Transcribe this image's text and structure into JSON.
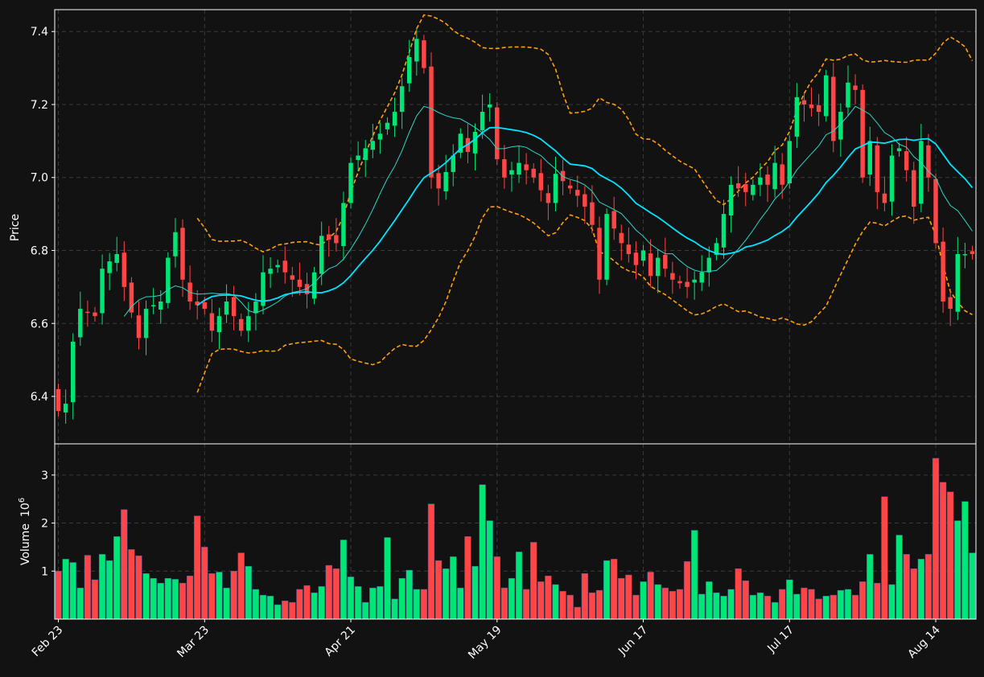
{
  "colors": {
    "background": "#121212",
    "up": "#00e676",
    "down": "#ff4545",
    "ma_fast": "#2fd6c6",
    "ma_slow": "#00e5ff",
    "bands": "#ff9f0a",
    "grid": "#3a3a3a",
    "frame": "#ffffff"
  },
  "chart_data": {
    "type": "candlestick",
    "price_panel": {
      "ylabel": "Price",
      "ylim": [
        6.27,
        7.46
      ],
      "yticks": [
        6.4,
        6.6,
        6.8,
        7.0,
        7.2,
        7.4
      ]
    },
    "volume_panel": {
      "ylabel": "Volume",
      "ylabel_exponent": "10",
      "ylabel_power": "6",
      "ylim": [
        0,
        3.65
      ],
      "yticks": [
        1,
        2,
        3
      ]
    },
    "xlim": [
      -0.5,
      125.5
    ],
    "xticks": [
      {
        "index": 0,
        "label": "Feb 23"
      },
      {
        "index": 20,
        "label": "Mar 23"
      },
      {
        "index": 40,
        "label": "Apr 21"
      },
      {
        "index": 60,
        "label": "May 19"
      },
      {
        "index": 80,
        "label": "Jun 17"
      },
      {
        "index": 100,
        "label": "Jul 17"
      },
      {
        "index": 120,
        "label": "Aug 14"
      }
    ],
    "grid": true,
    "legend": "none",
    "close_anchors": [
      [
        0,
        6.36
      ],
      [
        1,
        6.38
      ],
      [
        2,
        6.55
      ],
      [
        3,
        6.64
      ],
      [
        5,
        6.62
      ],
      [
        6,
        6.75
      ],
      [
        8,
        6.79
      ],
      [
        9,
        6.7
      ],
      [
        11,
        6.56
      ],
      [
        12,
        6.64
      ],
      [
        14,
        6.66
      ],
      [
        15,
        6.78
      ],
      [
        16,
        6.85
      ],
      [
        17,
        6.72
      ],
      [
        18,
        6.66
      ],
      [
        20,
        6.64
      ],
      [
        21,
        6.58
      ],
      [
        23,
        6.66
      ],
      [
        25,
        6.58
      ],
      [
        27,
        6.66
      ],
      [
        28,
        6.74
      ],
      [
        30,
        6.76
      ],
      [
        32,
        6.72
      ],
      [
        34,
        6.68
      ],
      [
        35,
        6.74
      ],
      [
        36,
        6.84
      ],
      [
        38,
        6.82
      ],
      [
        39,
        6.93
      ],
      [
        40,
        7.04
      ],
      [
        42,
        7.08
      ],
      [
        44,
        7.12
      ],
      [
        46,
        7.18
      ],
      [
        47,
        7.25
      ],
      [
        48,
        7.33
      ],
      [
        49,
        7.38
      ],
      [
        50,
        7.3
      ],
      [
        51,
        7.0
      ],
      [
        52,
        6.97
      ],
      [
        54,
        7.06
      ],
      [
        55,
        7.12
      ],
      [
        56,
        7.07
      ],
      [
        58,
        7.18
      ],
      [
        59,
        7.2
      ],
      [
        60,
        7.05
      ],
      [
        61,
        7.0
      ],
      [
        63,
        7.04
      ],
      [
        65,
        7.0
      ],
      [
        67,
        6.93
      ],
      [
        68,
        7.01
      ],
      [
        70,
        6.97
      ],
      [
        71,
        6.95
      ],
      [
        72,
        6.92
      ],
      [
        73,
        6.87
      ],
      [
        74,
        6.72
      ],
      [
        75,
        6.9
      ],
      [
        77,
        6.82
      ],
      [
        79,
        6.76
      ],
      [
        80,
        6.8
      ],
      [
        81,
        6.73
      ],
      [
        82,
        6.78
      ],
      [
        84,
        6.72
      ],
      [
        86,
        6.7
      ],
      [
        88,
        6.74
      ],
      [
        90,
        6.82
      ],
      [
        92,
        6.98
      ],
      [
        94,
        6.96
      ],
      [
        96,
        7.0
      ],
      [
        97,
        6.98
      ],
      [
        98,
        7.04
      ],
      [
        99,
        6.98
      ],
      [
        100,
        7.1
      ],
      [
        101,
        7.22
      ],
      [
        102,
        7.2
      ],
      [
        104,
        7.18
      ],
      [
        105,
        7.28
      ],
      [
        106,
        7.1
      ],
      [
        108,
        7.26
      ],
      [
        109,
        7.24
      ],
      [
        110,
        7.0
      ],
      [
        111,
        7.1
      ],
      [
        112,
        6.96
      ],
      [
        113,
        6.93
      ],
      [
        114,
        7.06
      ],
      [
        115,
        7.08
      ],
      [
        116,
        7.02
      ],
      [
        117,
        6.92
      ],
      [
        118,
        7.1
      ],
      [
        119,
        7.0
      ],
      [
        120,
        6.82
      ],
      [
        121,
        6.66
      ],
      [
        122,
        6.64
      ],
      [
        123,
        6.79
      ]
    ],
    "volume_anchors": [
      [
        0,
        1.0
      ],
      [
        1,
        1.25
      ],
      [
        2,
        1.18
      ],
      [
        3,
        0.65
      ],
      [
        4,
        1.33
      ],
      [
        5,
        0.82
      ],
      [
        6,
        1.35
      ],
      [
        7,
        1.22
      ],
      [
        8,
        1.72
      ],
      [
        9,
        2.28
      ],
      [
        10,
        1.45
      ],
      [
        11,
        1.32
      ],
      [
        12,
        0.95
      ],
      [
        13,
        0.85
      ],
      [
        14,
        0.75
      ],
      [
        15,
        0.85
      ],
      [
        16,
        0.83
      ],
      [
        17,
        0.75
      ],
      [
        18,
        0.9
      ],
      [
        19,
        2.15
      ],
      [
        20,
        1.5
      ],
      [
        21,
        0.95
      ],
      [
        22,
        0.98
      ],
      [
        23,
        0.65
      ],
      [
        24,
        1.0
      ],
      [
        25,
        1.38
      ],
      [
        26,
        1.1
      ],
      [
        27,
        0.62
      ],
      [
        28,
        0.5
      ],
      [
        29,
        0.48
      ],
      [
        30,
        0.3
      ],
      [
        31,
        0.38
      ],
      [
        32,
        0.35
      ],
      [
        33,
        0.62
      ],
      [
        34,
        0.7
      ],
      [
        35,
        0.55
      ],
      [
        36,
        0.68
      ],
      [
        37,
        1.12
      ],
      [
        38,
        1.05
      ],
      [
        39,
        1.65
      ],
      [
        40,
        0.88
      ],
      [
        41,
        0.68
      ],
      [
        42,
        0.35
      ],
      [
        43,
        0.65
      ],
      [
        44,
        0.68
      ],
      [
        45,
        1.7
      ],
      [
        46,
        0.42
      ],
      [
        47,
        0.85
      ],
      [
        48,
        1.02
      ],
      [
        49,
        0.62
      ],
      [
        50,
        0.62
      ],
      [
        51,
        2.4
      ],
      [
        52,
        1.22
      ],
      [
        53,
        1.05
      ],
      [
        54,
        1.3
      ],
      [
        55,
        0.65
      ],
      [
        56,
        1.72
      ],
      [
        57,
        1.1
      ],
      [
        58,
        2.8
      ],
      [
        59,
        2.05
      ],
      [
        60,
        1.3
      ],
      [
        61,
        0.65
      ],
      [
        62,
        0.85
      ],
      [
        63,
        1.4
      ],
      [
        64,
        0.62
      ],
      [
        65,
        1.6
      ],
      [
        66,
        0.78
      ],
      [
        67,
        0.9
      ],
      [
        68,
        0.72
      ],
      [
        69,
        0.58
      ],
      [
        70,
        0.5
      ],
      [
        71,
        0.25
      ],
      [
        72,
        0.95
      ],
      [
        73,
        0.55
      ],
      [
        74,
        0.6
      ],
      [
        75,
        1.22
      ],
      [
        76,
        1.25
      ],
      [
        77,
        0.85
      ],
      [
        78,
        0.92
      ],
      [
        79,
        0.5
      ],
      [
        80,
        0.78
      ],
      [
        81,
        0.98
      ],
      [
        82,
        0.72
      ],
      [
        83,
        0.65
      ],
      [
        84,
        0.58
      ],
      [
        85,
        0.62
      ],
      [
        86,
        1.2
      ],
      [
        87,
        1.85
      ],
      [
        88,
        0.52
      ],
      [
        89,
        0.78
      ],
      [
        90,
        0.55
      ],
      [
        91,
        0.48
      ],
      [
        92,
        0.62
      ],
      [
        93,
        1.05
      ],
      [
        94,
        0.8
      ],
      [
        95,
        0.5
      ],
      [
        96,
        0.55
      ],
      [
        97,
        0.48
      ],
      [
        98,
        0.35
      ],
      [
        99,
        0.62
      ],
      [
        100,
        0.82
      ],
      [
        101,
        0.52
      ],
      [
        102,
        0.65
      ],
      [
        103,
        0.62
      ],
      [
        104,
        0.42
      ],
      [
        105,
        0.48
      ],
      [
        106,
        0.5
      ],
      [
        107,
        0.6
      ],
      [
        108,
        0.62
      ],
      [
        109,
        0.5
      ],
      [
        110,
        0.78
      ],
      [
        111,
        1.35
      ],
      [
        112,
        0.75
      ],
      [
        113,
        2.55
      ],
      [
        114,
        0.72
      ],
      [
        115,
        1.75
      ],
      [
        116,
        1.35
      ],
      [
        117,
        1.05
      ],
      [
        118,
        1.25
      ],
      [
        119,
        1.35
      ],
      [
        120,
        3.35
      ],
      [
        121,
        2.85
      ],
      [
        122,
        2.65
      ],
      [
        123,
        2.05
      ],
      [
        124,
        2.45
      ],
      [
        125,
        1.38
      ]
    ]
  }
}
